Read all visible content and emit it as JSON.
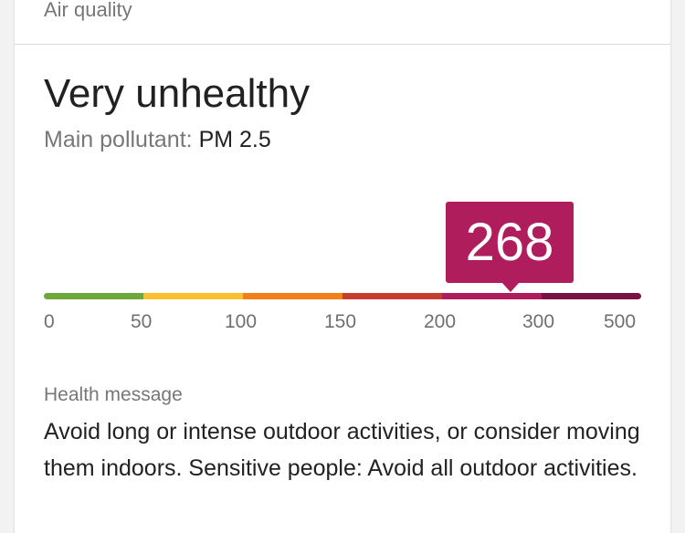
{
  "card": {
    "header_title": "Air quality"
  },
  "status": {
    "title": "Very unhealthy",
    "pollutant_label": "Main pollutant:",
    "pollutant_value": "PM 2.5"
  },
  "aqi": {
    "value": "268",
    "badge_color": "#af1d5c"
  },
  "scale": {
    "segments": [
      {
        "range": "0-50",
        "color": "#6da83b"
      },
      {
        "range": "50-100",
        "color": "#fcc02e"
      },
      {
        "range": "100-150",
        "color": "#f57f17"
      },
      {
        "range": "150-200",
        "color": "#c53e2f"
      },
      {
        "range": "200-300",
        "color": "#af1d5c"
      },
      {
        "range": "300-500",
        "color": "#7b1245"
      }
    ],
    "ticks": [
      "0",
      "50",
      "100",
      "150",
      "200",
      "300",
      "500"
    ]
  },
  "health": {
    "label": "Health message",
    "message": "Avoid long or intense outdoor activities, or consider moving them indoors. Sensitive people: Avoid all outdoor activities."
  }
}
